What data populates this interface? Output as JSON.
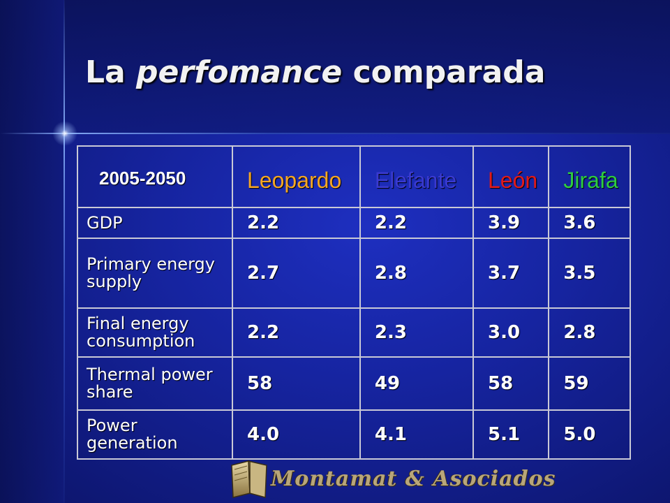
{
  "slide": {
    "title_part1": "La ",
    "title_italic": "perfomance",
    "title_part2": " comparada"
  },
  "table": {
    "corner": "2005-2050",
    "headers": [
      {
        "label": "Leopardo",
        "color": "#f5a623"
      },
      {
        "label": "Elefante",
        "color": "#3a3ad0"
      },
      {
        "label": "León",
        "color": "#e01a1a"
      },
      {
        "label": "Jirafa",
        "color": "#2ecc40"
      }
    ],
    "rows": [
      {
        "label": "GDP",
        "values": [
          "2.2",
          "2.2",
          "3.9",
          "3.6"
        ]
      },
      {
        "label": "Primary energy supply",
        "values": [
          "2.7",
          "2.8",
          "3.7",
          "3.5"
        ]
      },
      {
        "label": "Final energy consumption",
        "values": [
          "2.2",
          "2.3",
          "3.0",
          "2.8"
        ]
      },
      {
        "label": "Thermal power share",
        "values": [
          "58",
          "49",
          "58",
          "59"
        ]
      },
      {
        "label": "Power generation",
        "values": [
          "4.0",
          "4.1",
          "5.1",
          "5.0"
        ]
      }
    ]
  },
  "logo": {
    "text": "Montamat & Asociados",
    "icon": "book-logo-icon",
    "color": "#b8a67a"
  }
}
